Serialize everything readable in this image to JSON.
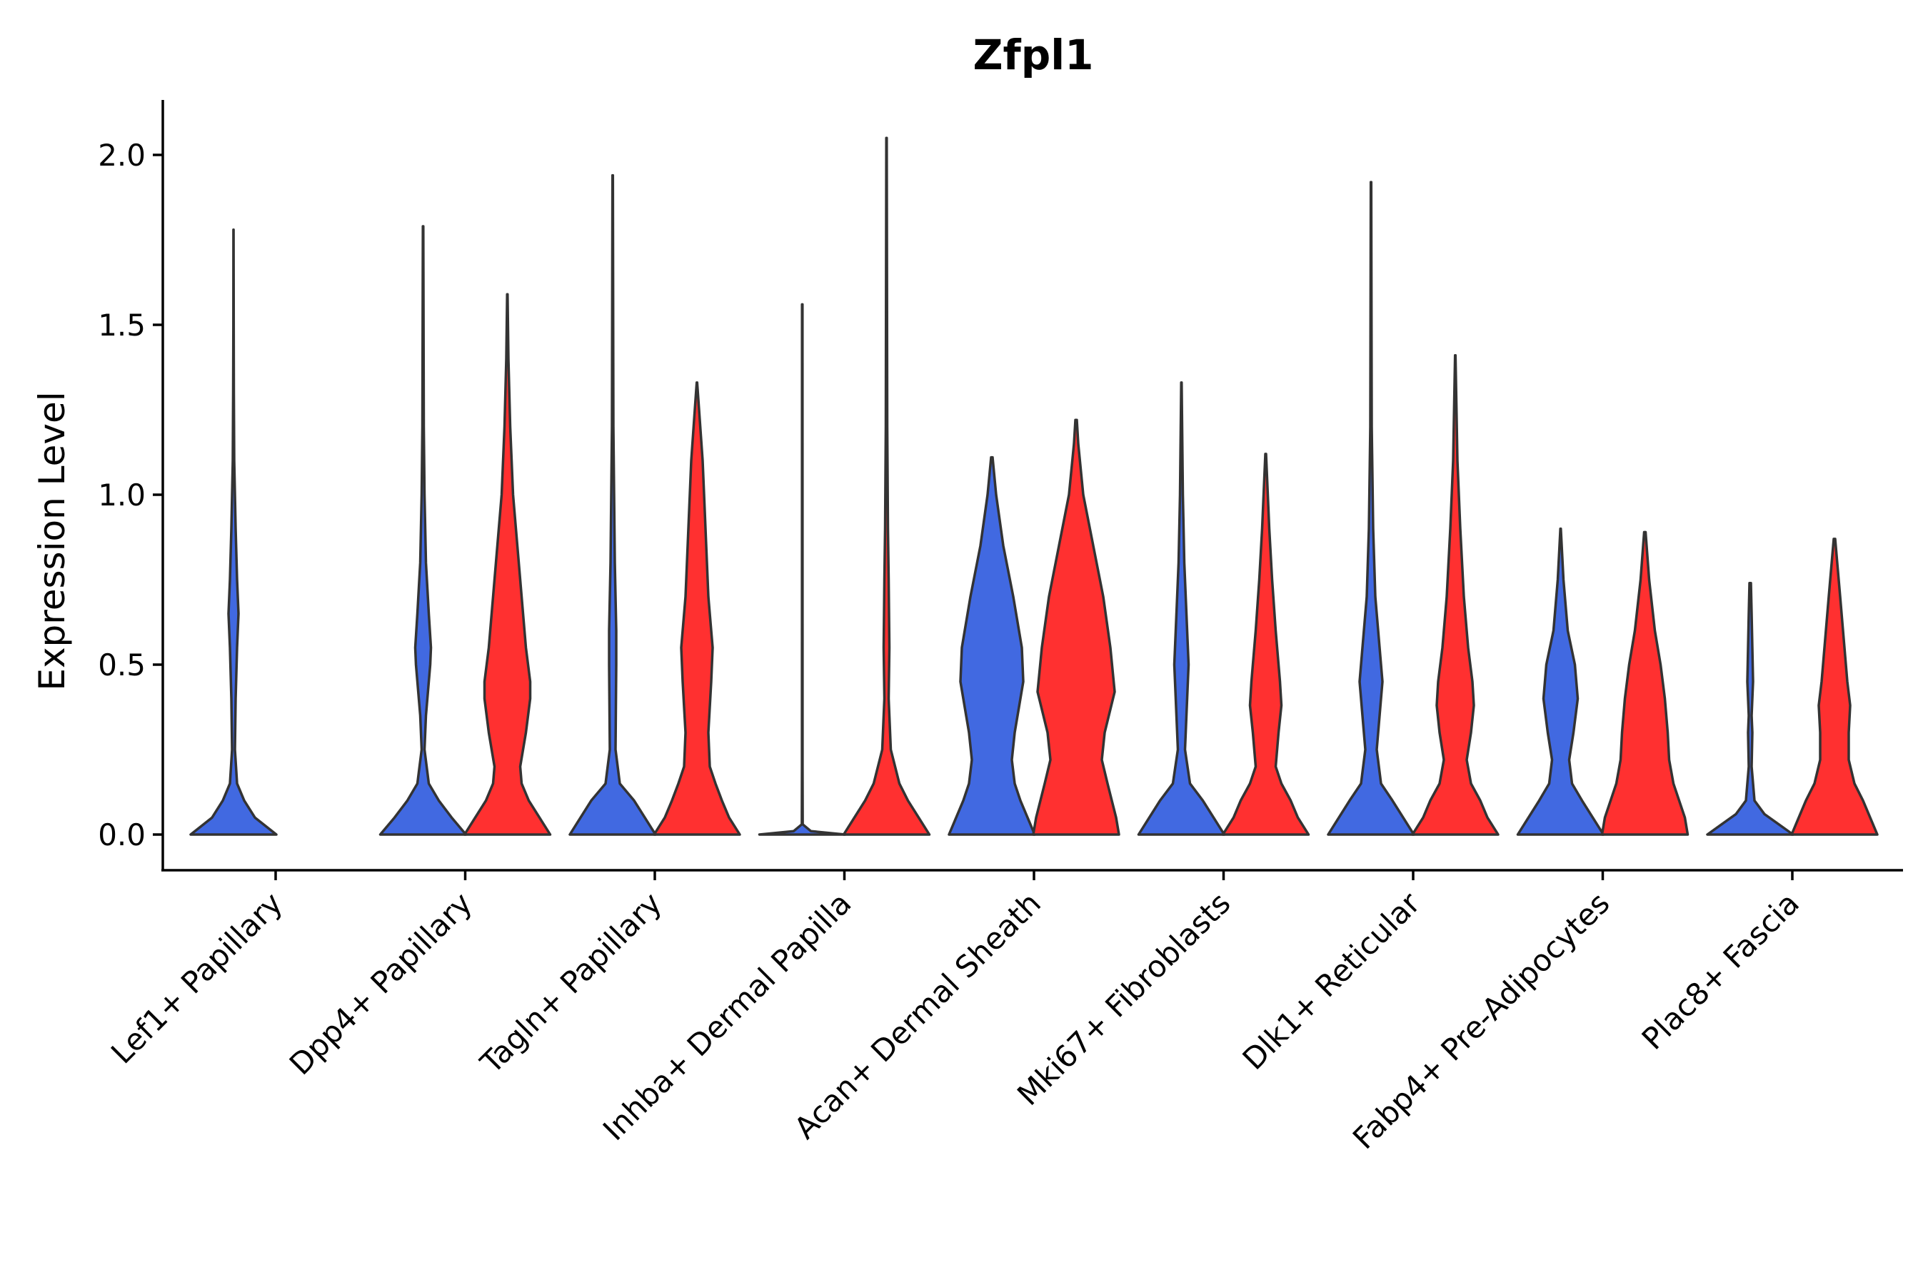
{
  "chart_data": {
    "type": "violin",
    "title": "Zfpl1",
    "xlabel": "",
    "ylabel": "Expression Level",
    "ylim": [
      -0.1,
      2.15
    ],
    "yticks": [
      0.0,
      0.5,
      1.0,
      1.5,
      2.0
    ],
    "ytick_labels": [
      "0.0",
      "0.5",
      "1.0",
      "1.5",
      "2.0"
    ],
    "grid": false,
    "legend": "none",
    "colors": {
      "blue": "#4169E1",
      "red": "#FF3030",
      "outline": "#333333"
    },
    "categories": [
      "Lef1+ Papillary",
      "Dpp4+ Papillary",
      "Tagln+ Papillary",
      "Inhba+ Dermal Papilla",
      "Acan+ Dermal Sheath",
      "Mki67+ Fibroblasts",
      "Dlk1+ Reticular",
      "Fabp4+ Pre-Adipocytes",
      "Plac8+ Fascia"
    ],
    "violins": [
      {
        "category": "Lef1+ Papillary",
        "split": "blue",
        "max": 1.78,
        "profile": [
          [
            0,
            120
          ],
          [
            0.05,
            60
          ],
          [
            0.1,
            30
          ],
          [
            0.15,
            10
          ],
          [
            0.25,
            4
          ],
          [
            0.4,
            6
          ],
          [
            0.55,
            10
          ],
          [
            0.65,
            14
          ],
          [
            0.75,
            10
          ],
          [
            0.9,
            6
          ],
          [
            1.1,
            2
          ],
          [
            1.3,
            1
          ],
          [
            1.5,
            0.5
          ],
          [
            1.78,
            0.3
          ]
        ]
      },
      {
        "category": "Dpp4+ Papillary",
        "split": "blue",
        "max": 1.79,
        "profile": [
          [
            0,
            60
          ],
          [
            0.05,
            40
          ],
          [
            0.1,
            22
          ],
          [
            0.15,
            8
          ],
          [
            0.25,
            2
          ],
          [
            0.35,
            4
          ],
          [
            0.5,
            10
          ],
          [
            0.55,
            11
          ],
          [
            0.65,
            8
          ],
          [
            0.8,
            4
          ],
          [
            1.0,
            2
          ],
          [
            1.2,
            1
          ],
          [
            1.79,
            0.3
          ]
        ]
      },
      {
        "category": "Dpp4+ Papillary",
        "split": "red",
        "max": 1.59,
        "profile": [
          [
            0,
            60
          ],
          [
            0.05,
            45
          ],
          [
            0.1,
            30
          ],
          [
            0.15,
            20
          ],
          [
            0.2,
            18
          ],
          [
            0.3,
            26
          ],
          [
            0.4,
            32
          ],
          [
            0.45,
            32
          ],
          [
            0.55,
            26
          ],
          [
            0.7,
            20
          ],
          [
            0.8,
            16
          ],
          [
            1.0,
            8
          ],
          [
            1.2,
            4
          ],
          [
            1.4,
            1.5
          ],
          [
            1.59,
            0.3
          ]
        ]
      },
      {
        "category": "Tagln+ Papillary",
        "split": "blue",
        "max": 1.94,
        "profile": [
          [
            0,
            60
          ],
          [
            0.05,
            45
          ],
          [
            0.1,
            30
          ],
          [
            0.15,
            10
          ],
          [
            0.25,
            4
          ],
          [
            0.5,
            5
          ],
          [
            0.6,
            5
          ],
          [
            0.8,
            3
          ],
          [
            1.0,
            2
          ],
          [
            1.2,
            1
          ],
          [
            1.94,
            0.3
          ]
        ]
      },
      {
        "category": "Tagln+ Papillary",
        "split": "red",
        "max": 1.33,
        "profile": [
          [
            0,
            60
          ],
          [
            0.05,
            45
          ],
          [
            0.1,
            35
          ],
          [
            0.15,
            26
          ],
          [
            0.2,
            18
          ],
          [
            0.3,
            16
          ],
          [
            0.45,
            20
          ],
          [
            0.55,
            22
          ],
          [
            0.7,
            16
          ],
          [
            0.9,
            12
          ],
          [
            1.1,
            8
          ],
          [
            1.25,
            3
          ],
          [
            1.33,
            0.3
          ]
        ]
      },
      {
        "category": "Inhba+ Dermal Papilla",
        "split": "blue",
        "max": 1.56,
        "profile": [
          [
            0,
            60
          ],
          [
            0.01,
            12
          ],
          [
            0.03,
            0.6
          ],
          [
            0.2,
            0.4
          ],
          [
            1.56,
            0.3
          ]
        ]
      },
      {
        "category": "Inhba+ Dermal Papilla",
        "split": "red",
        "max": 2.05,
        "profile": [
          [
            0,
            60
          ],
          [
            0.05,
            45
          ],
          [
            0.1,
            30
          ],
          [
            0.15,
            18
          ],
          [
            0.25,
            6
          ],
          [
            0.4,
            3
          ],
          [
            0.55,
            4
          ],
          [
            0.75,
            3
          ],
          [
            0.9,
            2
          ],
          [
            1.2,
            1
          ],
          [
            2.05,
            0.3
          ]
        ]
      },
      {
        "category": "Acan+ Dermal Sheath",
        "split": "blue",
        "max": 1.11,
        "profile": [
          [
            0,
            60
          ],
          [
            0.05,
            50
          ],
          [
            0.1,
            40
          ],
          [
            0.15,
            32
          ],
          [
            0.22,
            28
          ],
          [
            0.3,
            32
          ],
          [
            0.45,
            44
          ],
          [
            0.55,
            42
          ],
          [
            0.7,
            30
          ],
          [
            0.85,
            16
          ],
          [
            1.0,
            6
          ],
          [
            1.11,
            1
          ]
        ]
      },
      {
        "category": "Acan+ Dermal Sheath",
        "split": "red",
        "max": 1.22,
        "profile": [
          [
            0,
            60
          ],
          [
            0.05,
            56
          ],
          [
            0.1,
            50
          ],
          [
            0.15,
            44
          ],
          [
            0.22,
            36
          ],
          [
            0.3,
            40
          ],
          [
            0.42,
            54
          ],
          [
            0.55,
            48
          ],
          [
            0.7,
            38
          ],
          [
            0.85,
            24
          ],
          [
            1.0,
            10
          ],
          [
            1.15,
            3
          ],
          [
            1.22,
            1
          ]
        ]
      },
      {
        "category": "Mki67+ Fibroblasts",
        "split": "blue",
        "max": 1.33,
        "profile": [
          [
            0,
            60
          ],
          [
            0.05,
            45
          ],
          [
            0.1,
            30
          ],
          [
            0.15,
            12
          ],
          [
            0.25,
            5
          ],
          [
            0.4,
            8
          ],
          [
            0.5,
            10
          ],
          [
            0.6,
            8
          ],
          [
            0.8,
            4
          ],
          [
            1.0,
            2
          ],
          [
            1.33,
            0.3
          ]
        ]
      },
      {
        "category": "Mki67+ Fibroblasts",
        "split": "red",
        "max": 1.12,
        "profile": [
          [
            0,
            60
          ],
          [
            0.05,
            45
          ],
          [
            0.1,
            35
          ],
          [
            0.15,
            22
          ],
          [
            0.2,
            14
          ],
          [
            0.3,
            18
          ],
          [
            0.38,
            22
          ],
          [
            0.45,
            20
          ],
          [
            0.6,
            14
          ],
          [
            0.75,
            9
          ],
          [
            0.9,
            5
          ],
          [
            1.12,
            0.5
          ]
        ]
      },
      {
        "category": "Dlk1+ Reticular",
        "split": "blue",
        "max": 1.92,
        "profile": [
          [
            0,
            60
          ],
          [
            0.05,
            45
          ],
          [
            0.1,
            30
          ],
          [
            0.15,
            14
          ],
          [
            0.25,
            8
          ],
          [
            0.35,
            12
          ],
          [
            0.45,
            16
          ],
          [
            0.55,
            12
          ],
          [
            0.7,
            6
          ],
          [
            0.9,
            3
          ],
          [
            1.2,
            1
          ],
          [
            1.92,
            0.3
          ]
        ]
      },
      {
        "category": "Dlk1+ Reticular",
        "split": "red",
        "max": 1.41,
        "profile": [
          [
            0,
            60
          ],
          [
            0.05,
            45
          ],
          [
            0.1,
            35
          ],
          [
            0.15,
            22
          ],
          [
            0.22,
            16
          ],
          [
            0.3,
            22
          ],
          [
            0.38,
            26
          ],
          [
            0.45,
            24
          ],
          [
            0.55,
            18
          ],
          [
            0.7,
            12
          ],
          [
            0.9,
            7
          ],
          [
            1.1,
            3
          ],
          [
            1.41,
            0.3
          ]
        ]
      },
      {
        "category": "Fabp4+ Pre-Adipocytes",
        "split": "blue",
        "max": 0.9,
        "profile": [
          [
            0,
            60
          ],
          [
            0.05,
            45
          ],
          [
            0.1,
            30
          ],
          [
            0.15,
            16
          ],
          [
            0.22,
            12
          ],
          [
            0.3,
            18
          ],
          [
            0.4,
            24
          ],
          [
            0.5,
            20
          ],
          [
            0.6,
            10
          ],
          [
            0.75,
            4
          ],
          [
            0.9,
            0.3
          ]
        ]
      },
      {
        "category": "Fabp4+ Pre-Adipocytes",
        "split": "red",
        "max": 0.89,
        "profile": [
          [
            0,
            60
          ],
          [
            0.05,
            56
          ],
          [
            0.1,
            48
          ],
          [
            0.15,
            40
          ],
          [
            0.22,
            34
          ],
          [
            0.3,
            32
          ],
          [
            0.4,
            28
          ],
          [
            0.5,
            22
          ],
          [
            0.6,
            14
          ],
          [
            0.75,
            6
          ],
          [
            0.89,
            1
          ]
        ]
      },
      {
        "category": "Plac8+ Fascia",
        "split": "blue",
        "max": 0.74,
        "profile": [
          [
            0,
            60
          ],
          [
            0.03,
            40
          ],
          [
            0.06,
            20
          ],
          [
            0.1,
            6
          ],
          [
            0.2,
            2
          ],
          [
            0.3,
            3
          ],
          [
            0.35,
            2
          ],
          [
            0.45,
            4
          ],
          [
            0.55,
            3
          ],
          [
            0.65,
            2
          ],
          [
            0.74,
            1
          ]
        ]
      },
      {
        "category": "Plac8+ Fascia",
        "split": "red",
        "max": 0.87,
        "profile": [
          [
            0,
            60
          ],
          [
            0.05,
            50
          ],
          [
            0.1,
            40
          ],
          [
            0.15,
            28
          ],
          [
            0.22,
            20
          ],
          [
            0.3,
            20
          ],
          [
            0.38,
            22
          ],
          [
            0.45,
            18
          ],
          [
            0.55,
            14
          ],
          [
            0.7,
            8
          ],
          [
            0.87,
            1
          ]
        ]
      }
    ]
  }
}
